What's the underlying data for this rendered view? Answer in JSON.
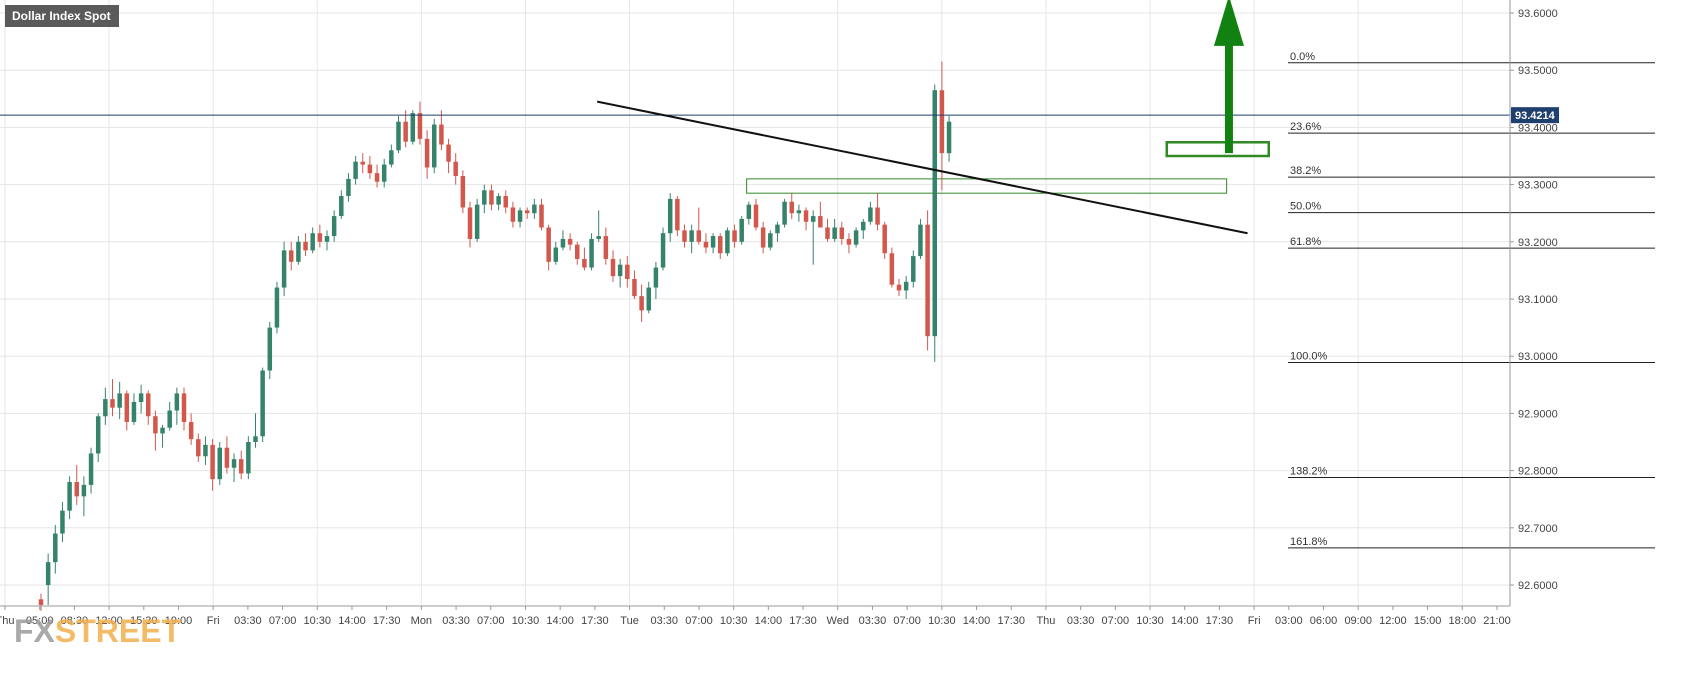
{
  "chart_data": {
    "type": "candlestick",
    "title": "Dollar Index Spot",
    "ylim": [
      92.56,
      93.65
    ],
    "last_price": "93.4214",
    "y_ticks": [
      {
        "value": 93.6,
        "label": "93.6000"
      },
      {
        "value": 93.5,
        "label": "93.5000"
      },
      {
        "value": 93.4,
        "label": "93.4000"
      },
      {
        "value": 93.3,
        "label": "93.3000"
      },
      {
        "value": 93.2,
        "label": "93.2000"
      },
      {
        "value": 93.1,
        "label": "93.1000"
      },
      {
        "value": 93.0,
        "label": "93.0000"
      },
      {
        "value": 92.9,
        "label": "92.9000"
      },
      {
        "value": 92.8,
        "label": "92.8000"
      },
      {
        "value": 92.7,
        "label": "92.7000"
      },
      {
        "value": 92.6,
        "label": "92.6000"
      }
    ],
    "x_ticks": [
      "Thu",
      "05:00",
      "08:30",
      "12:00",
      "15:30",
      "19:00",
      "Fri",
      "03:30",
      "07:00",
      "10:30",
      "14:00",
      "17:30",
      "Mon",
      "03:30",
      "07:00",
      "10:30",
      "14:00",
      "17:30",
      "Tue",
      "03:30",
      "07:00",
      "10:30",
      "14:00",
      "17:30",
      "Wed",
      "03:30",
      "07:00",
      "10:30",
      "14:00",
      "17:30",
      "Thu",
      "03:30",
      "07:00",
      "10:30",
      "14:00",
      "17:30",
      "Fri",
      "03:00",
      "06:00",
      "09:00",
      "12:00",
      "15:00",
      "18:00",
      "21:00"
    ],
    "fib_levels": [
      {
        "label": "0.0%",
        "value": 93.513
      },
      {
        "label": "23.6%",
        "value": 93.39
      },
      {
        "label": "38.2%",
        "value": 93.313
      },
      {
        "label": "50.0%",
        "value": 93.251
      },
      {
        "label": "61.8%",
        "value": 93.189
      },
      {
        "label": "100.0%",
        "value": 92.989
      },
      {
        "label": "138.2%",
        "value": 92.788
      },
      {
        "label": "161.8%",
        "value": 92.665
      }
    ],
    "candles": [
      {
        "o": 92.575,
        "h": 92.585,
        "l": 92.555,
        "c": 92.565
      },
      {
        "o": 92.6,
        "h": 92.655,
        "l": 92.565,
        "c": 92.64
      },
      {
        "o": 92.64,
        "h": 92.705,
        "l": 92.62,
        "c": 92.69
      },
      {
        "o": 92.69,
        "h": 92.745,
        "l": 92.675,
        "c": 92.73
      },
      {
        "o": 92.73,
        "h": 92.79,
        "l": 92.715,
        "c": 92.78
      },
      {
        "o": 92.78,
        "h": 92.81,
        "l": 92.74,
        "c": 92.755
      },
      {
        "o": 92.755,
        "h": 92.79,
        "l": 92.72,
        "c": 92.775
      },
      {
        "o": 92.775,
        "h": 92.84,
        "l": 92.76,
        "c": 92.83
      },
      {
        "o": 92.83,
        "h": 92.9,
        "l": 92.815,
        "c": 92.895
      },
      {
        "o": 92.895,
        "h": 92.945,
        "l": 92.88,
        "c": 92.925
      },
      {
        "o": 92.925,
        "h": 92.96,
        "l": 92.895,
        "c": 92.91
      },
      {
        "o": 92.91,
        "h": 92.955,
        "l": 92.89,
        "c": 92.935
      },
      {
        "o": 92.935,
        "h": 92.94,
        "l": 92.87,
        "c": 92.885
      },
      {
        "o": 92.885,
        "h": 92.935,
        "l": 92.88,
        "c": 92.92
      },
      {
        "o": 92.92,
        "h": 92.95,
        "l": 92.9,
        "c": 92.935
      },
      {
        "o": 92.935,
        "h": 92.94,
        "l": 92.88,
        "c": 92.895
      },
      {
        "o": 92.895,
        "h": 92.905,
        "l": 92.835,
        "c": 92.865
      },
      {
        "o": 92.865,
        "h": 92.88,
        "l": 92.84,
        "c": 92.875
      },
      {
        "o": 92.875,
        "h": 92.92,
        "l": 92.87,
        "c": 92.905
      },
      {
        "o": 92.905,
        "h": 92.945,
        "l": 92.88,
        "c": 92.935
      },
      {
        "o": 92.935,
        "h": 92.945,
        "l": 92.87,
        "c": 92.885
      },
      {
        "o": 92.885,
        "h": 92.9,
        "l": 92.845,
        "c": 92.855
      },
      {
        "o": 92.855,
        "h": 92.865,
        "l": 92.815,
        "c": 92.825
      },
      {
        "o": 92.825,
        "h": 92.86,
        "l": 92.81,
        "c": 92.845
      },
      {
        "o": 92.845,
        "h": 92.855,
        "l": 92.765,
        "c": 92.785
      },
      {
        "o": 92.785,
        "h": 92.85,
        "l": 92.775,
        "c": 92.84
      },
      {
        "o": 92.84,
        "h": 92.86,
        "l": 92.795,
        "c": 92.805
      },
      {
        "o": 92.805,
        "h": 92.83,
        "l": 92.78,
        "c": 92.82
      },
      {
        "o": 92.82,
        "h": 92.835,
        "l": 92.785,
        "c": 92.795
      },
      {
        "o": 92.795,
        "h": 92.86,
        "l": 92.785,
        "c": 92.85
      },
      {
        "o": 92.85,
        "h": 92.9,
        "l": 92.84,
        "c": 92.86
      },
      {
        "o": 92.86,
        "h": 92.98,
        "l": 92.85,
        "c": 92.975
      },
      {
        "o": 92.975,
        "h": 93.06,
        "l": 92.96,
        "c": 93.05
      },
      {
        "o": 93.05,
        "h": 93.13,
        "l": 93.04,
        "c": 93.12
      },
      {
        "o": 93.12,
        "h": 93.2,
        "l": 93.105,
        "c": 93.185
      },
      {
        "o": 93.185,
        "h": 93.2,
        "l": 93.15,
        "c": 93.165
      },
      {
        "o": 93.165,
        "h": 93.21,
        "l": 93.16,
        "c": 93.2
      },
      {
        "o": 93.2,
        "h": 93.215,
        "l": 93.175,
        "c": 93.185
      },
      {
        "o": 93.185,
        "h": 93.225,
        "l": 93.18,
        "c": 93.215
      },
      {
        "o": 93.215,
        "h": 93.23,
        "l": 93.19,
        "c": 93.2
      },
      {
        "o": 93.2,
        "h": 93.22,
        "l": 93.185,
        "c": 93.21
      },
      {
        "o": 93.21,
        "h": 93.255,
        "l": 93.2,
        "c": 93.245
      },
      {
        "o": 93.245,
        "h": 93.29,
        "l": 93.24,
        "c": 93.28
      },
      {
        "o": 93.28,
        "h": 93.32,
        "l": 93.27,
        "c": 93.31
      },
      {
        "o": 93.31,
        "h": 93.35,
        "l": 93.3,
        "c": 93.34
      },
      {
        "o": 93.34,
        "h": 93.355,
        "l": 93.32,
        "c": 93.335
      },
      {
        "o": 93.335,
        "h": 93.35,
        "l": 93.31,
        "c": 93.32
      },
      {
        "o": 93.32,
        "h": 93.335,
        "l": 93.295,
        "c": 93.305
      },
      {
        "o": 93.305,
        "h": 93.345,
        "l": 93.295,
        "c": 93.335
      },
      {
        "o": 93.335,
        "h": 93.37,
        "l": 93.33,
        "c": 93.36
      },
      {
        "o": 93.36,
        "h": 93.42,
        "l": 93.355,
        "c": 93.41
      },
      {
        "o": 93.41,
        "h": 93.43,
        "l": 93.365,
        "c": 93.375
      },
      {
        "o": 93.375,
        "h": 93.43,
        "l": 93.37,
        "c": 93.425
      },
      {
        "o": 93.425,
        "h": 93.445,
        "l": 93.37,
        "c": 93.38
      },
      {
        "o": 93.38,
        "h": 93.395,
        "l": 93.31,
        "c": 93.33
      },
      {
        "o": 93.33,
        "h": 93.415,
        "l": 93.32,
        "c": 93.405
      },
      {
        "o": 93.405,
        "h": 93.43,
        "l": 93.36,
        "c": 93.37
      },
      {
        "o": 93.37,
        "h": 93.38,
        "l": 93.32,
        "c": 93.34
      },
      {
        "o": 93.34,
        "h": 93.355,
        "l": 93.3,
        "c": 93.315
      },
      {
        "o": 93.315,
        "h": 93.325,
        "l": 93.25,
        "c": 93.26
      },
      {
        "o": 93.26,
        "h": 93.27,
        "l": 93.19,
        "c": 93.205
      },
      {
        "o": 93.205,
        "h": 93.275,
        "l": 93.2,
        "c": 93.265
      },
      {
        "o": 93.265,
        "h": 93.3,
        "l": 93.25,
        "c": 93.29
      },
      {
        "o": 93.29,
        "h": 93.3,
        "l": 93.255,
        "c": 93.265
      },
      {
        "o": 93.265,
        "h": 93.285,
        "l": 93.255,
        "c": 93.28
      },
      {
        "o": 93.28,
        "h": 93.29,
        "l": 93.25,
        "c": 93.26
      },
      {
        "o": 93.26,
        "h": 93.27,
        "l": 93.225,
        "c": 93.235
      },
      {
        "o": 93.235,
        "h": 93.26,
        "l": 93.225,
        "c": 93.255
      },
      {
        "o": 93.255,
        "h": 93.26,
        "l": 93.24,
        "c": 93.25
      },
      {
        "o": 93.25,
        "h": 93.275,
        "l": 93.24,
        "c": 93.265
      },
      {
        "o": 93.265,
        "h": 93.275,
        "l": 93.22,
        "c": 93.225
      },
      {
        "o": 93.225,
        "h": 93.23,
        "l": 93.15,
        "c": 93.165
      },
      {
        "o": 93.165,
        "h": 93.2,
        "l": 93.16,
        "c": 93.19
      },
      {
        "o": 93.19,
        "h": 93.22,
        "l": 93.185,
        "c": 93.205
      },
      {
        "o": 93.205,
        "h": 93.215,
        "l": 93.185,
        "c": 93.195
      },
      {
        "o": 93.195,
        "h": 93.2,
        "l": 93.16,
        "c": 93.17
      },
      {
        "o": 93.17,
        "h": 93.19,
        "l": 93.15,
        "c": 93.155
      },
      {
        "o": 93.155,
        "h": 93.215,
        "l": 93.15,
        "c": 93.205
      },
      {
        "o": 93.205,
        "h": 93.255,
        "l": 93.2,
        "c": 93.21
      },
      {
        "o": 93.21,
        "h": 93.225,
        "l": 93.16,
        "c": 93.17
      },
      {
        "o": 93.17,
        "h": 93.185,
        "l": 93.13,
        "c": 93.14
      },
      {
        "o": 93.14,
        "h": 93.17,
        "l": 93.12,
        "c": 93.16
      },
      {
        "o": 93.16,
        "h": 93.175,
        "l": 93.12,
        "c": 93.135
      },
      {
        "o": 93.135,
        "h": 93.15,
        "l": 93.1,
        "c": 93.105
      },
      {
        "o": 93.105,
        "h": 93.125,
        "l": 93.06,
        "c": 93.08
      },
      {
        "o": 93.08,
        "h": 93.13,
        "l": 93.075,
        "c": 93.12
      },
      {
        "o": 93.12,
        "h": 93.165,
        "l": 93.1,
        "c": 93.155
      },
      {
        "o": 93.155,
        "h": 93.225,
        "l": 93.15,
        "c": 93.215
      },
      {
        "o": 93.215,
        "h": 93.285,
        "l": 93.2,
        "c": 93.275
      },
      {
        "o": 93.275,
        "h": 93.28,
        "l": 93.21,
        "c": 93.22
      },
      {
        "o": 93.22,
        "h": 93.23,
        "l": 93.19,
        "c": 93.2
      },
      {
        "o": 93.2,
        "h": 93.23,
        "l": 93.18,
        "c": 93.22
      },
      {
        "o": 93.22,
        "h": 93.26,
        "l": 93.195,
        "c": 93.2
      },
      {
        "o": 93.2,
        "h": 93.215,
        "l": 93.18,
        "c": 93.19
      },
      {
        "o": 93.19,
        "h": 93.215,
        "l": 93.18,
        "c": 93.21
      },
      {
        "o": 93.21,
        "h": 93.215,
        "l": 93.17,
        "c": 93.18
      },
      {
        "o": 93.18,
        "h": 93.225,
        "l": 93.175,
        "c": 93.22
      },
      {
        "o": 93.22,
        "h": 93.23,
        "l": 93.19,
        "c": 93.2
      },
      {
        "o": 93.2,
        "h": 93.245,
        "l": 93.195,
        "c": 93.24
      },
      {
        "o": 93.24,
        "h": 93.27,
        "l": 93.23,
        "c": 93.265
      },
      {
        "o": 93.265,
        "h": 93.275,
        "l": 93.22,
        "c": 93.225
      },
      {
        "o": 93.225,
        "h": 93.235,
        "l": 93.18,
        "c": 93.19
      },
      {
        "o": 93.19,
        "h": 93.22,
        "l": 93.185,
        "c": 93.215
      },
      {
        "o": 93.215,
        "h": 93.235,
        "l": 93.2,
        "c": 93.23
      },
      {
        "o": 93.23,
        "h": 93.275,
        "l": 93.225,
        "c": 93.27
      },
      {
        "o": 93.27,
        "h": 93.285,
        "l": 93.24,
        "c": 93.25
      },
      {
        "o": 93.25,
        "h": 93.265,
        "l": 93.235,
        "c": 93.255
      },
      {
        "o": 93.255,
        "h": 93.26,
        "l": 93.22,
        "c": 93.235
      },
      {
        "o": 93.235,
        "h": 93.255,
        "l": 93.16,
        "c": 93.245
      },
      {
        "o": 93.245,
        "h": 93.27,
        "l": 93.225,
        "c": 93.225
      },
      {
        "o": 93.225,
        "h": 93.24,
        "l": 93.2,
        "c": 93.205
      },
      {
        "o": 93.205,
        "h": 93.24,
        "l": 93.2,
        "c": 93.225
      },
      {
        "o": 93.225,
        "h": 93.235,
        "l": 93.195,
        "c": 93.205
      },
      {
        "o": 93.205,
        "h": 93.215,
        "l": 93.18,
        "c": 93.195
      },
      {
        "o": 93.195,
        "h": 93.225,
        "l": 93.19,
        "c": 93.22
      },
      {
        "o": 93.22,
        "h": 93.24,
        "l": 93.205,
        "c": 93.235
      },
      {
        "o": 93.235,
        "h": 93.27,
        "l": 93.23,
        "c": 93.26
      },
      {
        "o": 93.26,
        "h": 93.285,
        "l": 93.22,
        "c": 93.23
      },
      {
        "o": 93.23,
        "h": 93.235,
        "l": 93.17,
        "c": 93.18
      },
      {
        "o": 93.18,
        "h": 93.19,
        "l": 93.12,
        "c": 93.125
      },
      {
        "o": 93.125,
        "h": 93.135,
        "l": 93.105,
        "c": 93.115
      },
      {
        "o": 93.115,
        "h": 93.14,
        "l": 93.1,
        "c": 93.13
      },
      {
        "o": 93.13,
        "h": 93.185,
        "l": 93.12,
        "c": 93.175
      },
      {
        "o": 93.175,
        "h": 93.24,
        "l": 93.17,
        "c": 93.23
      },
      {
        "o": 93.23,
        "h": 93.255,
        "l": 93.01,
        "c": 93.035
      },
      {
        "o": 93.035,
        "h": 93.475,
        "l": 92.99,
        "c": 93.465
      },
      {
        "o": 93.465,
        "h": 93.515,
        "l": 93.29,
        "c": 93.355
      },
      {
        "o": 93.355,
        "h": 93.42,
        "l": 93.34,
        "c": 93.41
      }
    ],
    "annotations": {
      "trendline": {
        "from": {
          "idx": 48,
          "value": 93.445
        },
        "to": {
          "idx": 137,
          "value": 93.215
        }
      },
      "resistance_box": {
        "from_idx": 91,
        "to_idx": 146,
        "top": 93.31,
        "bottom": 93.285
      },
      "breakout_box": {
        "from_idx": 125,
        "to_idx": 137,
        "top": 93.374,
        "bottom": 93.35
      },
      "up_arrow": {
        "idx": 133,
        "base": 93.355,
        "tip": 93.63
      }
    }
  },
  "colors": {
    "bull": "#36836b",
    "bear": "#d2584d",
    "grid": "#e6e6e6",
    "axis_text": "#444444",
    "title_bg": "#5a5a5a",
    "title_text": "#ffffff",
    "price_tag_bg": "#1f3f6e",
    "price_line": "#1f3f6e",
    "annotation_green": "#2f8a24",
    "arrow_green": "#118211",
    "trendline": "#111111",
    "fib_line": "#222222",
    "logo_fx": "#9b9b9b",
    "logo_street": "#f2b04d"
  },
  "logo": {
    "prefix": "FX",
    "suffix": "STREET"
  }
}
